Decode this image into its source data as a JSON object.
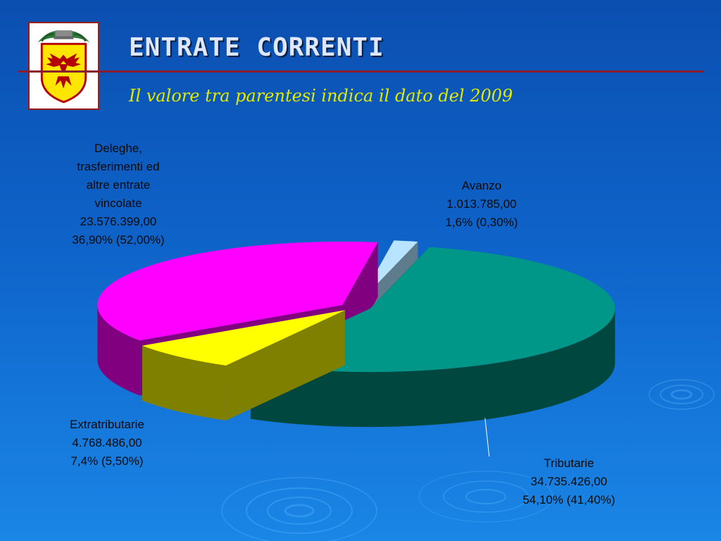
{
  "slide": {
    "title": "ENTRATE CORRENTI",
    "subtitle": "Il valore tra parentesi indica il dato del 2009"
  },
  "colors": {
    "background": "#0e63c9",
    "title_rule": "#8b1e2e",
    "subtitle": "#e2ea00"
  },
  "icons": {
    "logo": "coat-of-arms-eagle-icon"
  },
  "chart_data": {
    "type": "pie",
    "style": "3d-exploded",
    "slices": [
      {
        "key": "tributarie",
        "name": "Tributarie",
        "value": 34735426.0,
        "value_label": "34.735.426,00",
        "percent": 54.1,
        "percent_label": "54,10% (41,40%)",
        "percent_2009": 41.4,
        "color_top": "#009688",
        "color_side": "#00473f"
      },
      {
        "key": "extratributarie",
        "name": "Extratributarie",
        "value": 4768486.0,
        "value_label": "4.768.486,00",
        "percent": 7.4,
        "percent_label": "7,4% (5,50%)",
        "percent_2009": 5.5,
        "color_top": "#ffff00",
        "color_side": "#808000"
      },
      {
        "key": "deleghe",
        "name_lines": [
          "Deleghe,",
          "trasferimenti ed",
          "altre entrate",
          "vincolate"
        ],
        "value": 23576399.0,
        "value_label": "23.576.399,00",
        "percent": 36.9,
        "percent_label": "36,90% (52,00%)",
        "percent_2009": 52.0,
        "color_top": "#ff00ff",
        "color_side": "#800080"
      },
      {
        "key": "avanzo",
        "name": "Avanzo",
        "value": 1013785.0,
        "value_label": "1.013.785,00",
        "percent": 1.6,
        "percent_label": "1,6% (0,30%)",
        "percent_2009": 0.3,
        "color_top": "#b8e4ff",
        "color_side": "#5e7c8c"
      }
    ]
  }
}
